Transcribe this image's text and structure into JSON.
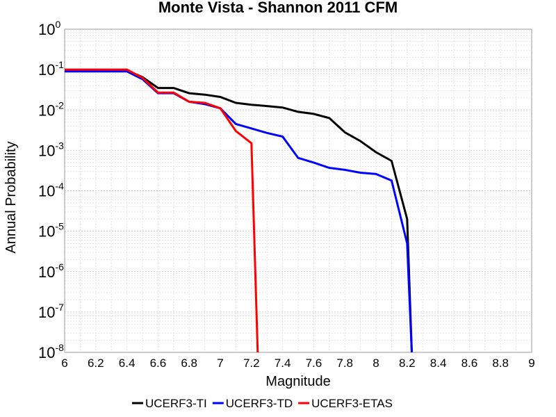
{
  "chart_data": {
    "type": "line",
    "title": "Monte Vista - Shannon 2011 CFM",
    "xlabel": "Magnitude",
    "ylabel": "Annual Probability",
    "xlim": [
      6,
      9
    ],
    "ylim": [
      1e-08,
      1
    ],
    "yscale": "log",
    "grid": true,
    "legend_position": "bottom",
    "x_ticks": [
      "6",
      "6.2",
      "6.4",
      "6.6",
      "6.8",
      "7",
      "7.2",
      "7.4",
      "7.6",
      "7.8",
      "8",
      "8.2",
      "8.4",
      "8.6",
      "8.8",
      "9"
    ],
    "y_ticks": [
      {
        "base": "10",
        "exp": "0"
      },
      {
        "base": "10",
        "exp": "-1"
      },
      {
        "base": "10",
        "exp": "-2"
      },
      {
        "base": "10",
        "exp": "-3"
      },
      {
        "base": "10",
        "exp": "-4"
      },
      {
        "base": "10",
        "exp": "-5"
      },
      {
        "base": "10",
        "exp": "-6"
      },
      {
        "base": "10",
        "exp": "-7"
      },
      {
        "base": "10",
        "exp": "-8"
      }
    ],
    "series": [
      {
        "name": "UCERF3-TI",
        "color": "#000000",
        "points": [
          [
            6.0,
            0.095
          ],
          [
            6.1,
            0.095
          ],
          [
            6.2,
            0.095
          ],
          [
            6.3,
            0.095
          ],
          [
            6.4,
            0.095
          ],
          [
            6.5,
            0.065
          ],
          [
            6.6,
            0.035
          ],
          [
            6.7,
            0.035
          ],
          [
            6.8,
            0.026
          ],
          [
            6.9,
            0.024
          ],
          [
            7.0,
            0.021
          ],
          [
            7.1,
            0.015
          ],
          [
            7.2,
            0.0135
          ],
          [
            7.3,
            0.0125
          ],
          [
            7.4,
            0.0115
          ],
          [
            7.5,
            0.009
          ],
          [
            7.6,
            0.008
          ],
          [
            7.7,
            0.0063
          ],
          [
            7.8,
            0.0028
          ],
          [
            7.9,
            0.0017
          ],
          [
            8.0,
            0.0009
          ],
          [
            8.1,
            0.00055
          ],
          [
            8.2,
            2e-05
          ],
          [
            8.23,
            1e-08
          ]
        ]
      },
      {
        "name": "UCERF3-TD",
        "color": "#0000ff",
        "points": [
          [
            6.0,
            0.09
          ],
          [
            6.1,
            0.09
          ],
          [
            6.2,
            0.09
          ],
          [
            6.3,
            0.09
          ],
          [
            6.4,
            0.09
          ],
          [
            6.5,
            0.058
          ],
          [
            6.6,
            0.026
          ],
          [
            6.7,
            0.026
          ],
          [
            6.8,
            0.016
          ],
          [
            6.9,
            0.014
          ],
          [
            7.0,
            0.011
          ],
          [
            7.1,
            0.0045
          ],
          [
            7.2,
            0.0035
          ],
          [
            7.3,
            0.0027
          ],
          [
            7.4,
            0.0022
          ],
          [
            7.5,
            0.00065
          ],
          [
            7.6,
            0.0005
          ],
          [
            7.7,
            0.00037
          ],
          [
            7.8,
            0.00033
          ],
          [
            7.9,
            0.00028
          ],
          [
            8.0,
            0.00026
          ],
          [
            8.1,
            0.00018
          ],
          [
            8.2,
            5e-06
          ],
          [
            8.23,
            1e-08
          ]
        ]
      },
      {
        "name": "UCERF3-ETAS",
        "color": "#ff0000",
        "points": [
          [
            6.0,
            0.1
          ],
          [
            6.1,
            0.1
          ],
          [
            6.2,
            0.1
          ],
          [
            6.3,
            0.1
          ],
          [
            6.4,
            0.1
          ],
          [
            6.5,
            0.063
          ],
          [
            6.6,
            0.027
          ],
          [
            6.7,
            0.027
          ],
          [
            6.8,
            0.016
          ],
          [
            6.9,
            0.015
          ],
          [
            7.0,
            0.011
          ],
          [
            7.1,
            0.003
          ],
          [
            7.2,
            0.0015
          ],
          [
            7.24,
            1e-08
          ]
        ]
      }
    ]
  }
}
